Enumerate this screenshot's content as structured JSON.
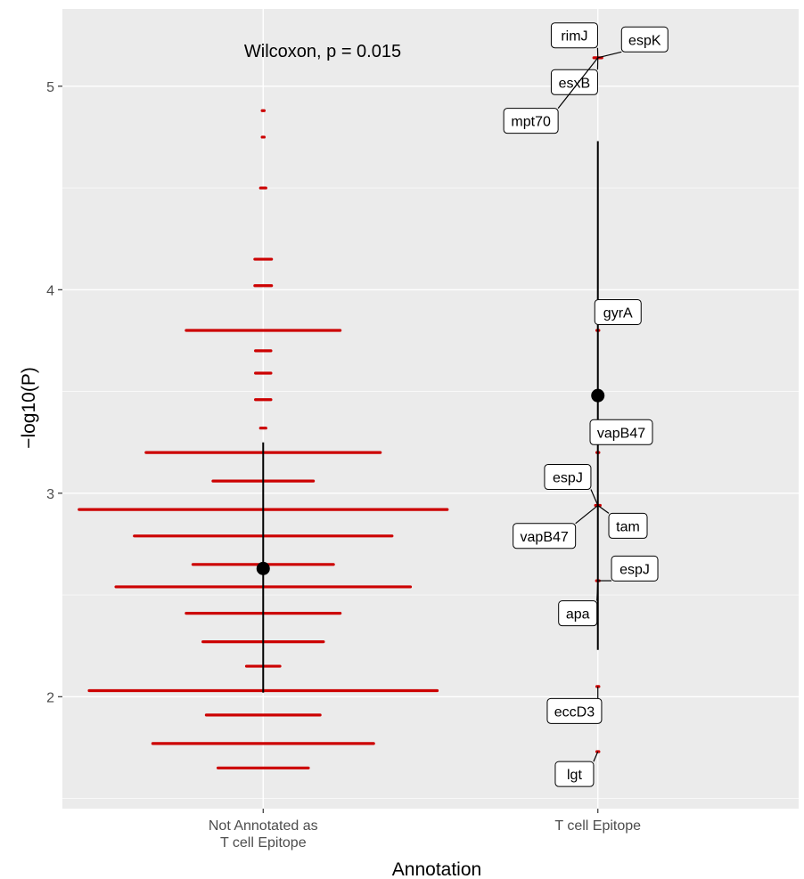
{
  "chart_data": {
    "type": "dotplot",
    "xlabel": "Annotation",
    "ylabel": "−log10(P)",
    "annotation": "Wilcoxon, p = 0.015",
    "categories": [
      "Not Annotated as\nT cell Epitope",
      "T cell Epitope"
    ],
    "ylim": [
      1.45,
      5.38
    ],
    "yticks": [
      2,
      3,
      4,
      5
    ],
    "grid": true,
    "colors": {
      "points": "#cc0000",
      "summary": "#000000",
      "panel": "#ebebeb",
      "grid": "#ffffff"
    },
    "groups": [
      {
        "category_index": 0,
        "mean": 2.63,
        "range": [
          2.02,
          3.25
        ],
        "rows": [
          {
            "y": 4.88,
            "half_width": 0.002
          },
          {
            "y": 4.75,
            "half_width": 0.002
          },
          {
            "y": 4.5,
            "half_width": 0.008
          },
          {
            "y": 4.15,
            "half_width": 0.025
          },
          {
            "y": 4.02,
            "half_width": 0.025
          },
          {
            "y": 3.8,
            "half_width": 0.23
          },
          {
            "y": 3.7,
            "half_width": 0.023
          },
          {
            "y": 3.59,
            "half_width": 0.023
          },
          {
            "y": 3.46,
            "half_width": 0.023
          },
          {
            "y": 3.32,
            "half_width": 0.008
          },
          {
            "y": 3.2,
            "half_width": 0.35
          },
          {
            "y": 3.06,
            "half_width": 0.15
          },
          {
            "y": 2.92,
            "half_width": 0.55
          },
          {
            "y": 2.79,
            "half_width": 0.385
          },
          {
            "y": 2.65,
            "half_width": 0.21
          },
          {
            "y": 2.54,
            "half_width": 0.44
          },
          {
            "y": 2.41,
            "half_width": 0.23
          },
          {
            "y": 2.27,
            "half_width": 0.18
          },
          {
            "y": 2.15,
            "half_width": 0.05
          },
          {
            "y": 2.03,
            "half_width": 0.52
          },
          {
            "y": 1.91,
            "half_width": 0.17
          },
          {
            "y": 1.77,
            "half_width": 0.33
          },
          {
            "y": 1.65,
            "half_width": 0.135
          }
        ]
      },
      {
        "category_index": 1,
        "mean": 3.48,
        "range": [
          2.23,
          4.73
        ],
        "rows": [
          {
            "y": 5.14,
            "half_width": 0.012
          },
          {
            "y": 3.8,
            "half_width": 0.002
          },
          {
            "y": 3.2,
            "half_width": 0.002
          },
          {
            "y": 2.94,
            "half_width": 0.007
          },
          {
            "y": 2.57,
            "half_width": 0.004
          },
          {
            "y": 2.05,
            "half_width": 0.003
          },
          {
            "y": 1.73,
            "half_width": 0.003
          }
        ]
      }
    ],
    "labels": [
      {
        "gene": "rimJ",
        "point_y": 5.14,
        "label_x": 1.93,
        "label_y": 5.25
      },
      {
        "gene": "espK",
        "point_y": 5.14,
        "label_x": 2.14,
        "label_y": 5.23
      },
      {
        "gene": "esxB",
        "point_y": 5.14,
        "label_x": 1.93,
        "label_y": 5.02
      },
      {
        "gene": "mpt70",
        "point_y": 5.14,
        "label_x": 1.8,
        "label_y": 4.83
      },
      {
        "gene": "gyrA",
        "point_y": 3.8,
        "label_x": 2.06,
        "label_y": 3.89
      },
      {
        "gene": "vapB47",
        "point_y": 3.2,
        "label_x": 2.07,
        "label_y": 3.3
      },
      {
        "gene": "espJ",
        "point_y": 2.94,
        "label_x": 1.91,
        "label_y": 3.08
      },
      {
        "gene": "tam",
        "point_y": 2.94,
        "label_x": 2.09,
        "label_y": 2.84
      },
      {
        "gene": "vapB47",
        "point_y": 2.94,
        "label_x": 1.84,
        "label_y": 2.79
      },
      {
        "gene": "espJ",
        "point_y": 2.57,
        "label_x": 2.11,
        "label_y": 2.63
      },
      {
        "gene": "apa",
        "point_y": 2.57,
        "label_x": 1.94,
        "label_y": 2.41
      },
      {
        "gene": "eccD3",
        "point_y": 2.05,
        "label_x": 1.93,
        "label_y": 1.93
      },
      {
        "gene": "lgt",
        "point_y": 1.73,
        "label_x": 1.93,
        "label_y": 1.62
      }
    ]
  }
}
